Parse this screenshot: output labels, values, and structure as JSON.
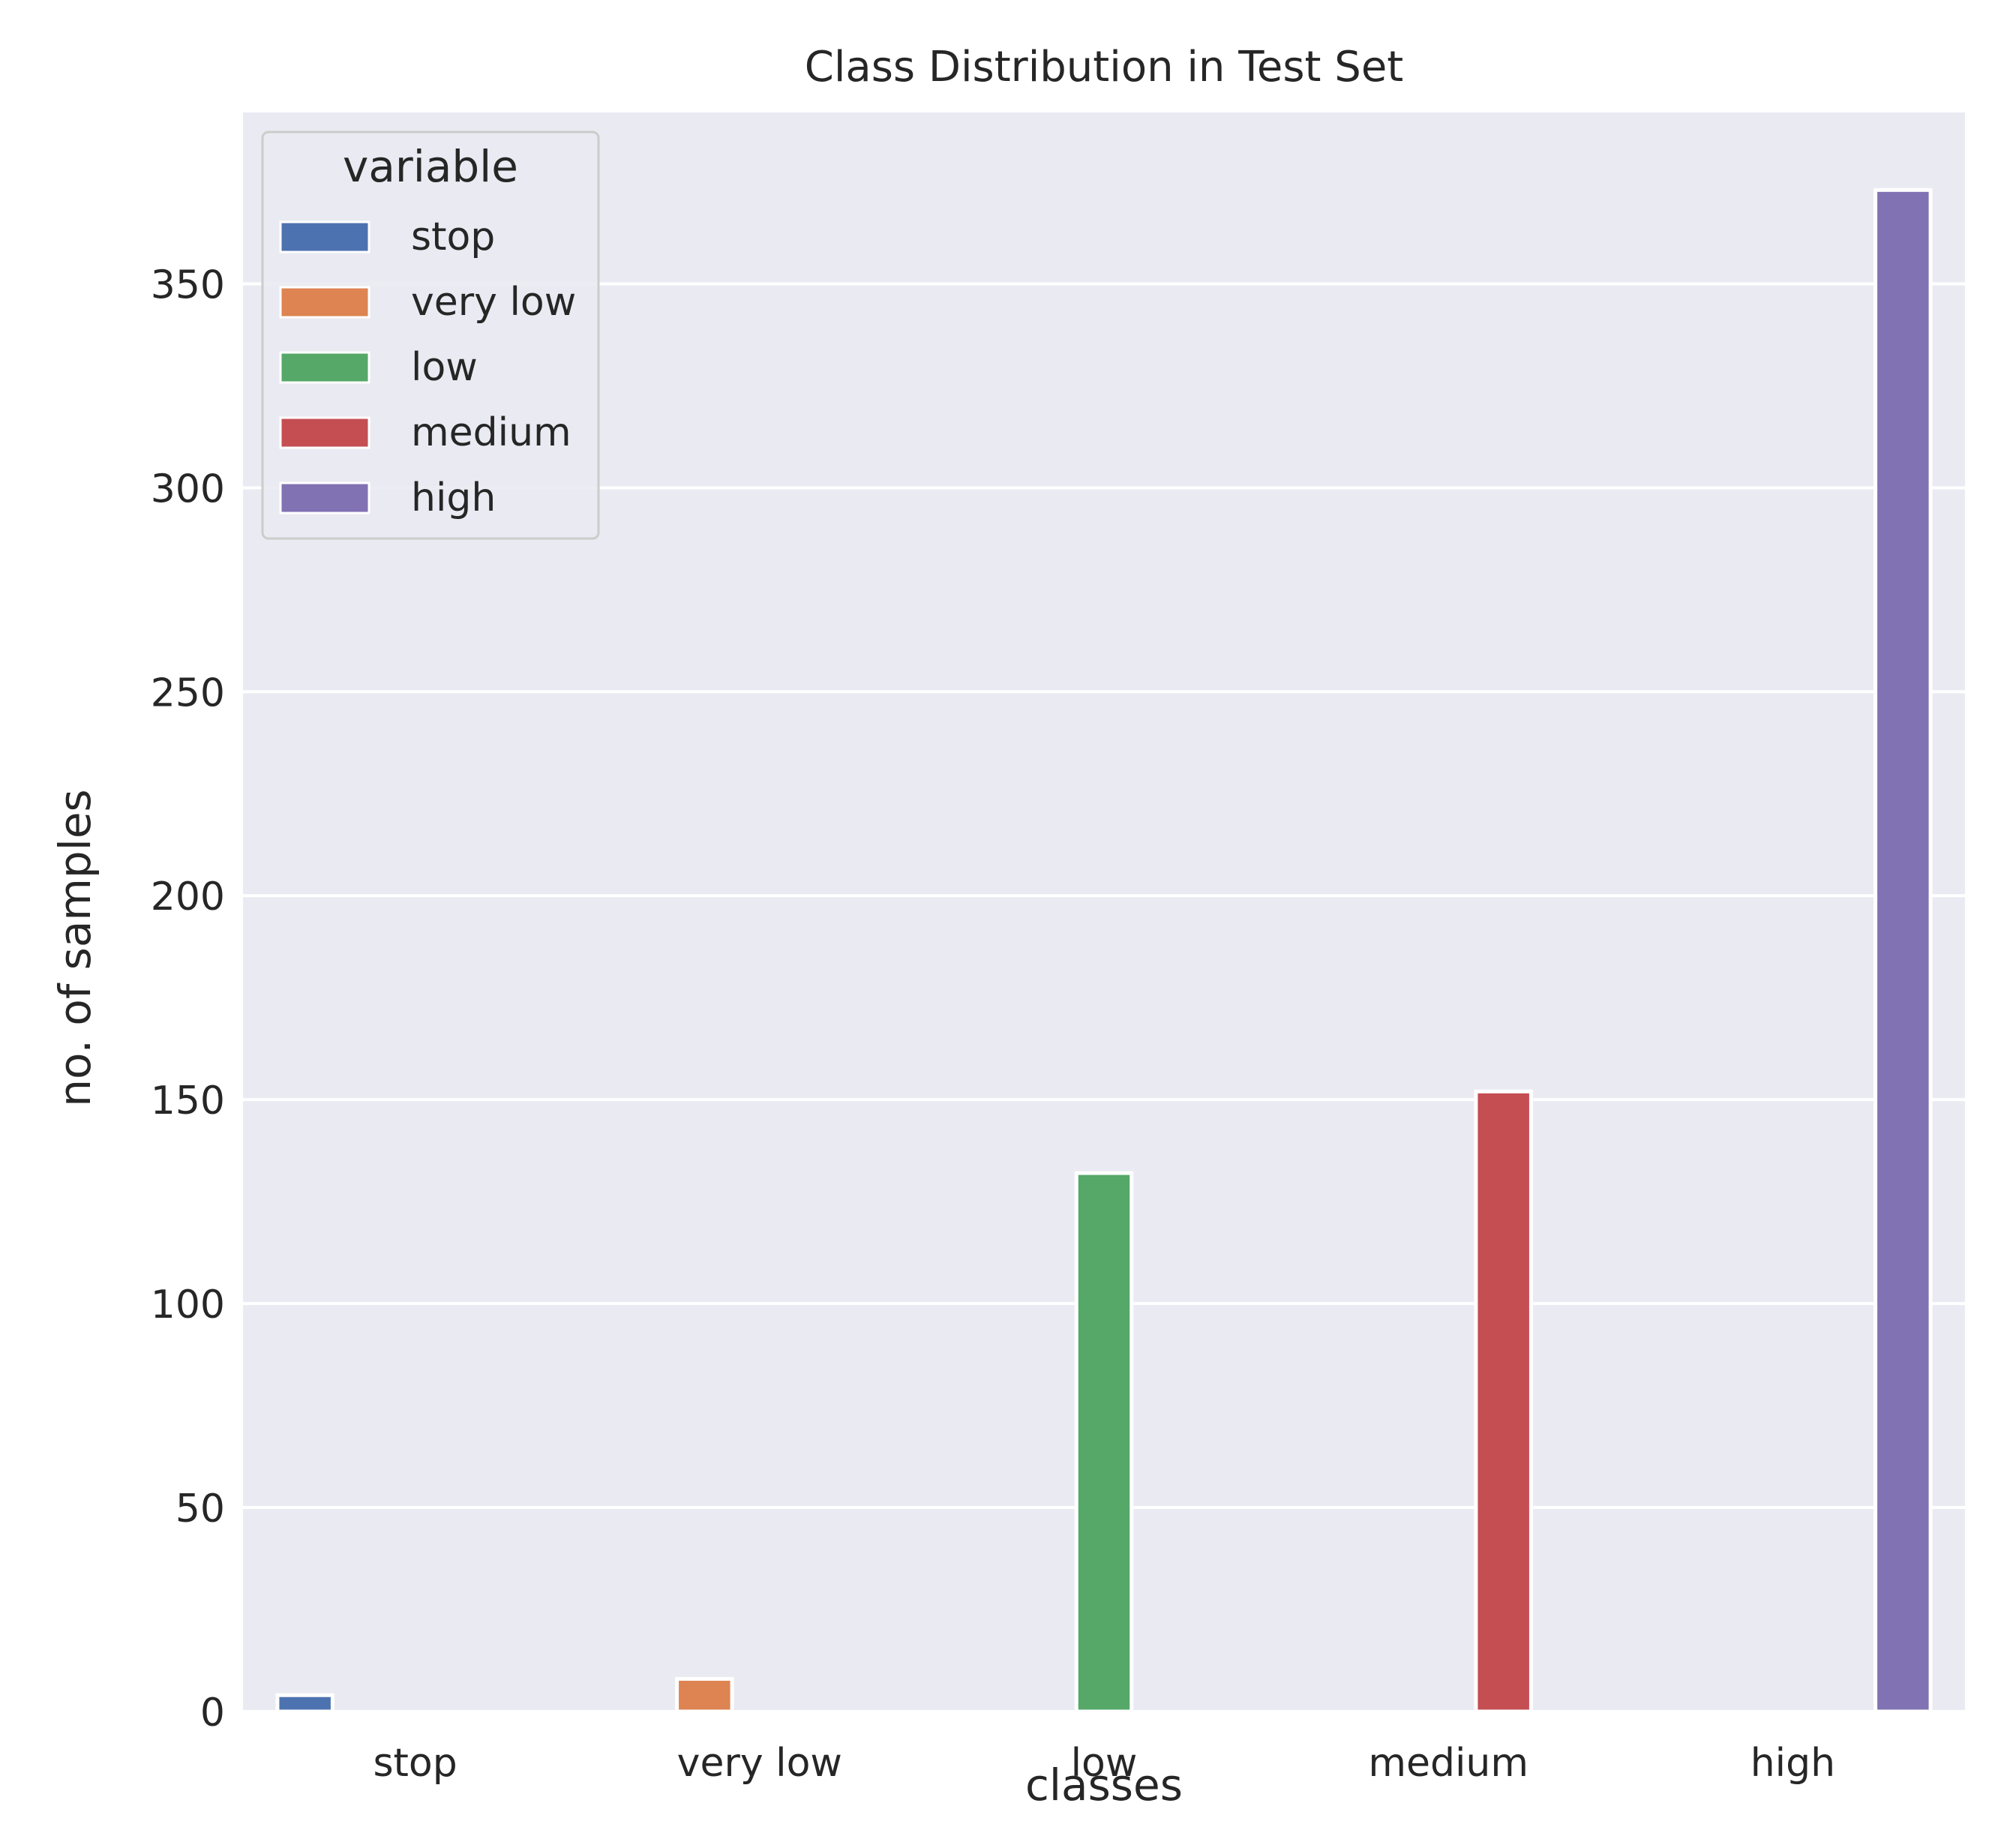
{
  "chart_data": {
    "type": "bar",
    "title": "Class Distribution in Test Set",
    "xlabel": "classes",
    "ylabel": "no. of samples",
    "categories": [
      "stop",
      "very low",
      "low",
      "medium",
      "high"
    ],
    "series": [
      {
        "name": "stop",
        "color": "#4c72b0",
        "values": [
          4,
          0,
          0,
          0,
          0
        ]
      },
      {
        "name": "very low",
        "color": "#dd8452",
        "values": [
          0,
          8,
          0,
          0,
          0
        ]
      },
      {
        "name": "low",
        "color": "#55a868",
        "values": [
          0,
          0,
          132,
          0,
          0
        ]
      },
      {
        "name": "medium",
        "color": "#c44e52",
        "values": [
          0,
          0,
          0,
          152,
          0
        ]
      },
      {
        "name": "high",
        "color": "#8172b3",
        "values": [
          0,
          0,
          0,
          0,
          373
        ]
      }
    ],
    "ylim": [
      0,
      392
    ],
    "yticks": [
      0,
      50,
      100,
      150,
      200,
      250,
      300,
      350
    ],
    "grid": true,
    "legend": {
      "title": "variable",
      "placement": "top-left"
    },
    "background": "#eaeaf2"
  }
}
